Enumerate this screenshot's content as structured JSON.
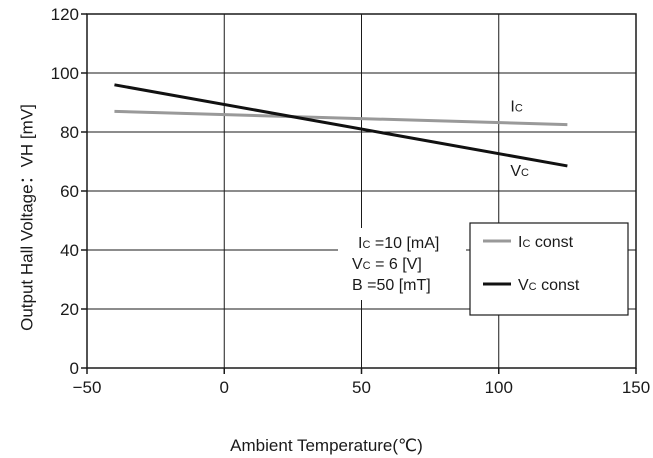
{
  "chart_data": {
    "type": "line",
    "ylabel": "Output Hall Voltage：VH [mV]",
    "xlabel": "Ambient Temperature(℃)",
    "xlim": [
      -50,
      150
    ],
    "ylim": [
      0,
      120
    ],
    "x_ticks": [
      "−50",
      "0",
      "50",
      "100",
      "150"
    ],
    "x_tick_values": [
      -50,
      0,
      50,
      100,
      150
    ],
    "y_ticks": [
      "0",
      "20",
      "40",
      "60",
      "80",
      "100",
      "120"
    ],
    "y_tick_values": [
      0,
      20,
      40,
      60,
      80,
      100,
      120
    ],
    "grid": true,
    "series": [
      {
        "name": "Ic const",
        "color": "#999999",
        "x": [
          -40,
          125
        ],
        "y": [
          87,
          82.5
        ]
      },
      {
        "name": "Vc const",
        "color": "#111111",
        "x": [
          -40,
          125
        ],
        "y": [
          96,
          68.5
        ]
      }
    ],
    "line_labels": [
      {
        "main": "I",
        "sub": "C"
      },
      {
        "main": "V",
        "sub": "C"
      }
    ],
    "legend": {
      "placement": "bottom-right",
      "entries": [
        {
          "main": "I",
          "sub": "C",
          "rest": " const"
        },
        {
          "main": "V",
          "sub": "C",
          "rest": " const"
        }
      ]
    },
    "conditions": [
      {
        "pre": "I",
        "sub": "C",
        "rest": "  =10 [mA]"
      },
      {
        "pre": "V",
        "sub": "C",
        "rest": "  = 6  [V]"
      },
      {
        "pre": "B",
        "sub": "",
        "rest": "  =50 [mT]"
      }
    ]
  }
}
